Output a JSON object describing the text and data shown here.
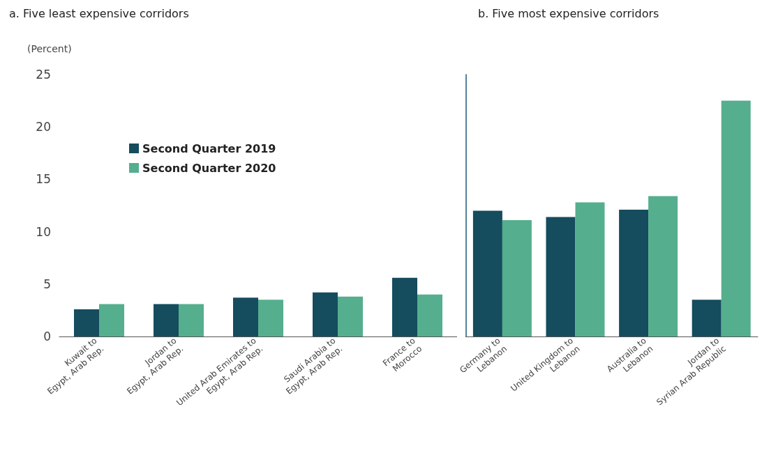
{
  "chart_data": [
    {
      "type": "bar",
      "title": "a. Five least expensive corridors",
      "ylabel": "(Percent)",
      "categories": [
        "Kuwait to\nEgypt, Arab Rep.",
        "Jordan to\nEgypt, Arab Rep.",
        "United Arab Emirates to\nEgypt, Arab Rep.",
        "Saudi Arabia to\nEgypt, Arab Rep.",
        "France to\nMorocco"
      ],
      "series": [
        {
          "name": "Second Quarter 2019",
          "color": "#154c5e",
          "values": [
            2.6,
            3.1,
            3.7,
            4.2,
            5.6
          ]
        },
        {
          "name": "Second Quarter 2020",
          "color": "#55ae8e",
          "values": [
            3.1,
            3.1,
            3.5,
            3.8,
            4.0
          ]
        }
      ],
      "ylim": [
        0,
        25
      ],
      "yticks": [
        0,
        5,
        10,
        15,
        20,
        25
      ],
      "grid": false,
      "legend": "top left"
    },
    {
      "type": "bar",
      "title": "b. Five most expensive corridors",
      "categories": [
        "Germany to\nLebanon",
        "United Kingdom to\nLebanon",
        "Australia to\nLebanon",
        "Jordan to\nSyrian Arab Republic"
      ],
      "series": [
        {
          "color": "#154c5e",
          "values": [
            12.0,
            11.4,
            12.1,
            3.5
          ]
        },
        {
          "color": "#55ae8e",
          "values": [
            11.1,
            12.8,
            13.4,
            22.5
          ]
        }
      ],
      "ylim": [
        0,
        25
      ],
      "yticks": [
        0,
        5,
        10,
        15,
        20,
        25
      ],
      "grid": false,
      "tick_labels": "x",
      "legend": false
    }
  ]
}
